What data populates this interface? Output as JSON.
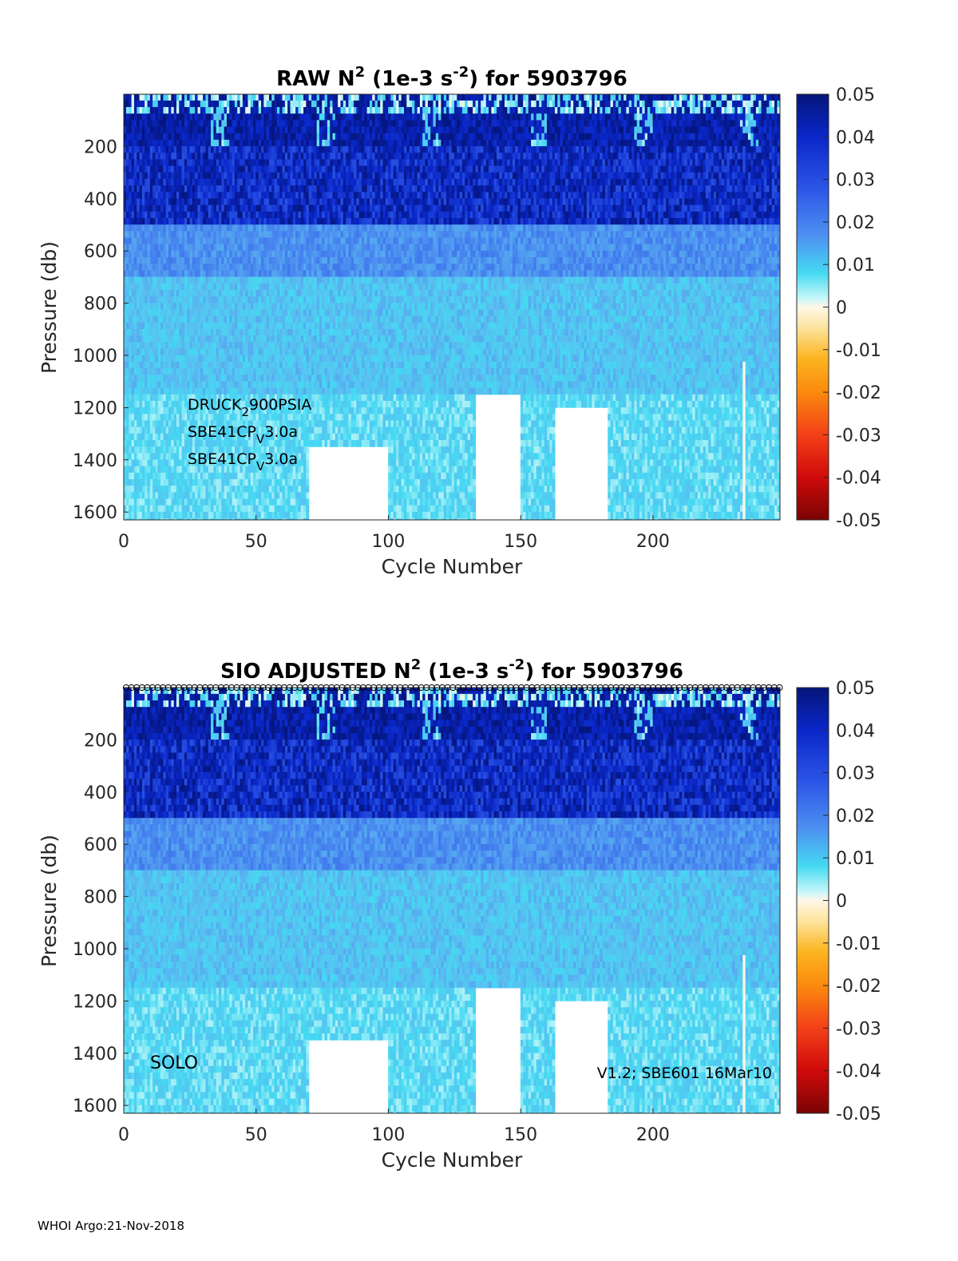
{
  "footer": "WHOI Argo:21-Nov-2018",
  "colorbar": {
    "ticks": [
      "0.05",
      "0.04",
      "0.03",
      "0.02",
      "0.01",
      "0",
      "-0.01",
      "-0.02",
      "-0.03",
      "-0.04",
      "-0.05"
    ],
    "range": [
      -0.05,
      0.05
    ],
    "colormap": "blue (positive) - cyan - white - yellow - orange - red (negative)"
  },
  "chart_data": [
    {
      "type": "heatmap",
      "title": {
        "pre": "RAW N",
        "sup1": "2",
        "mid": " (1e-3 s",
        "sup2": "-2",
        "post": ") for 5903796"
      },
      "xlabel": "Cycle Number",
      "ylabel": "Pressure (db)",
      "xlim": [
        0,
        248
      ],
      "ylim": [
        1630,
        0
      ],
      "xticks": [
        0,
        50,
        100,
        150,
        200
      ],
      "yticks": [
        200,
        400,
        600,
        800,
        1000,
        1200,
        1400,
        1600
      ],
      "clim": [
        -0.05,
        0.05
      ],
      "annotations": [
        {
          "pre": "DRUCK",
          "sub": "2",
          "post": "900PSIA"
        },
        {
          "pre": "SBE41CP",
          "sub": "V",
          "post": "3.0a"
        },
        {
          "pre": "SBE41CP",
          "sub": "V",
          "post": "3.0a"
        }
      ],
      "profile_structure": [
        {
          "pressure_range": [
            0,
            60
          ],
          "n2": 0.0
        },
        {
          "pressure_range": [
            60,
            180
          ],
          "n2": 0.045
        },
        {
          "pressure_range": [
            180,
            500
          ],
          "n2": 0.04
        },
        {
          "pressure_range": [
            500,
            700
          ],
          "n2": 0.02
        },
        {
          "pressure_range": [
            700,
            1150
          ],
          "n2": 0.012
        },
        {
          "pressure_range": [
            1150,
            1630
          ],
          "n2": 0.008
        }
      ],
      "gaps": [
        {
          "cycles": [
            70,
            100
          ],
          "from_pressure": 1350
        },
        {
          "cycles": [
            133,
            150
          ],
          "from_pressure": 1150
        },
        {
          "cycles": [
            163,
            183
          ],
          "from_pressure": 1200
        }
      ]
    },
    {
      "type": "heatmap",
      "title": {
        "pre": "SIO  ADJUSTED N",
        "sup1": "2",
        "mid": " (1e-3 s",
        "sup2": "-2",
        "post": ") for 5903796"
      },
      "xlabel": "Cycle Number",
      "ylabel": "Pressure (db)",
      "xlim": [
        0,
        248
      ],
      "ylim": [
        1630,
        0
      ],
      "xticks": [
        0,
        50,
        100,
        150,
        200
      ],
      "yticks": [
        200,
        400,
        600,
        800,
        1000,
        1200,
        1400,
        1600
      ],
      "clim": [
        -0.05,
        0.05
      ],
      "annotations": [
        "SOLO",
        "V1.2; SBE601 16Mar10"
      ],
      "profile_structure": [
        {
          "pressure_range": [
            0,
            60
          ],
          "n2": 0.0
        },
        {
          "pressure_range": [
            60,
            180
          ],
          "n2": 0.045
        },
        {
          "pressure_range": [
            180,
            500
          ],
          "n2": 0.04
        },
        {
          "pressure_range": [
            500,
            700
          ],
          "n2": 0.02
        },
        {
          "pressure_range": [
            700,
            1150
          ],
          "n2": 0.012
        },
        {
          "pressure_range": [
            1150,
            1630
          ],
          "n2": 0.008
        }
      ],
      "gaps": [
        {
          "cycles": [
            70,
            100
          ],
          "from_pressure": 1350
        },
        {
          "cycles": [
            133,
            150
          ],
          "from_pressure": 1150
        },
        {
          "cycles": [
            163,
            183
          ],
          "from_pressure": 1200
        }
      ]
    }
  ]
}
